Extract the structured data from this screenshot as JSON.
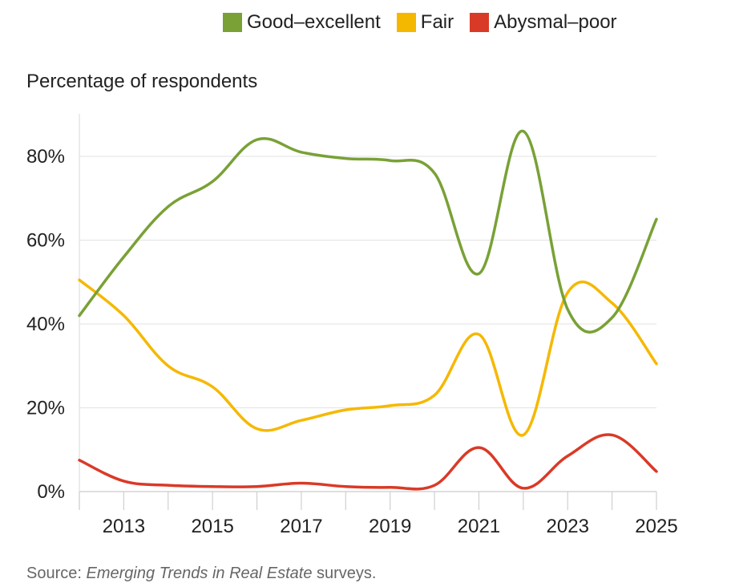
{
  "legend": {
    "items": [
      {
        "label": "Good–excellent",
        "color": "#79a136"
      },
      {
        "label": "Fair",
        "color": "#f5b800"
      },
      {
        "label": "Abysmal–poor",
        "color": "#d93a27"
      }
    ]
  },
  "chart_data": {
    "type": "line",
    "ylabel": "Percentage of respondents",
    "x": [
      2012,
      2013,
      2014,
      2015,
      2016,
      2017,
      2018,
      2019,
      2020,
      2021,
      2022,
      2023,
      2024,
      2025
    ],
    "x_ticks": [
      "2013",
      "2015",
      "2017",
      "2019",
      "2021",
      "2023",
      "2025"
    ],
    "y_ticks": [
      "0%",
      "20%",
      "40%",
      "60%",
      "80%"
    ],
    "ylim": [
      0,
      90
    ],
    "grid": true,
    "legend_position": "top-right",
    "series": [
      {
        "name": "Good–excellent",
        "color": "#79a136",
        "values": [
          42,
          56,
          68,
          74,
          84,
          81,
          79.5,
          79,
          76,
          52,
          86,
          43.5,
          41.5,
          65
        ]
      },
      {
        "name": "Fair",
        "color": "#f5b800",
        "values": [
          50.5,
          42,
          30,
          25,
          15,
          17,
          19.5,
          20.5,
          23,
          37.5,
          13.5,
          47.5,
          45,
          30.5
        ]
      },
      {
        "name": "Abysmal–poor",
        "color": "#d93a27",
        "values": [
          7.5,
          2.5,
          1.5,
          1.2,
          1.2,
          2,
          1.2,
          1,
          1.5,
          10.5,
          0.8,
          8.5,
          13.5,
          4.8
        ]
      }
    ]
  },
  "source": {
    "prefix": "Source: ",
    "title": "Emerging Trends in Real Estate",
    "suffix": " surveys."
  }
}
